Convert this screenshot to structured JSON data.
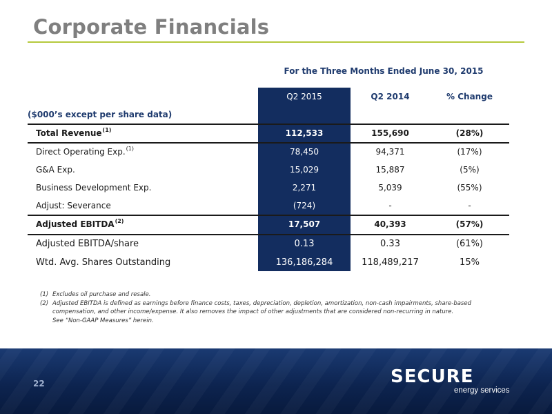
{
  "slide": {
    "title": "Corporate Financials",
    "period": "For the Three Months Ended June 30, 2015",
    "units": "($000’s except per share data)",
    "page_number": "22"
  },
  "table": {
    "headers": [
      "Q2 2015",
      "Q2 2014",
      "% Change"
    ],
    "rows": [
      {
        "label": "Total Revenue",
        "sup": "(1)",
        "bold": true,
        "values": [
          "112,533",
          "155,690",
          "(28%)"
        ]
      },
      {
        "label": "Direct Operating Exp.",
        "sup": "(1)",
        "bold": false,
        "values": [
          "78,450",
          "94,371",
          "(17%)"
        ]
      },
      {
        "label": "G&A Exp.",
        "sup": "",
        "bold": false,
        "values": [
          "15,029",
          "15,887",
          "(5%)"
        ]
      },
      {
        "label": "Business Development Exp.",
        "sup": "",
        "bold": false,
        "values": [
          "2,271",
          "5,039",
          "(55%)"
        ]
      },
      {
        "label": "Adjust: Severance",
        "sup": "",
        "bold": false,
        "values": [
          "(724)",
          "-",
          "-"
        ]
      },
      {
        "label": "Adjusted EBITDA",
        "sup": "(2)",
        "bold": true,
        "values": [
          "17,507",
          "40,393",
          "(57%)"
        ]
      },
      {
        "label": "Adjusted EBITDA/share",
        "sup": "",
        "bold": false,
        "values": [
          "0.13",
          "0.33",
          "(61%)"
        ]
      },
      {
        "label": "Wtd. Avg. Shares Outstanding",
        "sup": "",
        "bold": false,
        "values": [
          "136,186,284",
          "118,489,217",
          "15%"
        ]
      }
    ]
  },
  "footnotes": [
    {
      "num": "(1)",
      "text": "Excludes oil purchase and resale."
    },
    {
      "num": "(2)",
      "text": "Adjusted EBITDA is defined as earnings before finance costs, taxes, depreciation, depletion, amortization, non-cash impairments, share-based compensation, and other income/expense. It also removes the impact of other adjustments that are considered non-recurring in nature."
    },
    {
      "num": "",
      "text": "See “Non-GAAP Measures” herein."
    }
  ],
  "logo": {
    "wordmark": "SECURE",
    "tagline": "energy services"
  },
  "colors": {
    "accent_green": "#b5c93c",
    "navy": "#132d5f",
    "title_gray": "#7f7f7f"
  }
}
